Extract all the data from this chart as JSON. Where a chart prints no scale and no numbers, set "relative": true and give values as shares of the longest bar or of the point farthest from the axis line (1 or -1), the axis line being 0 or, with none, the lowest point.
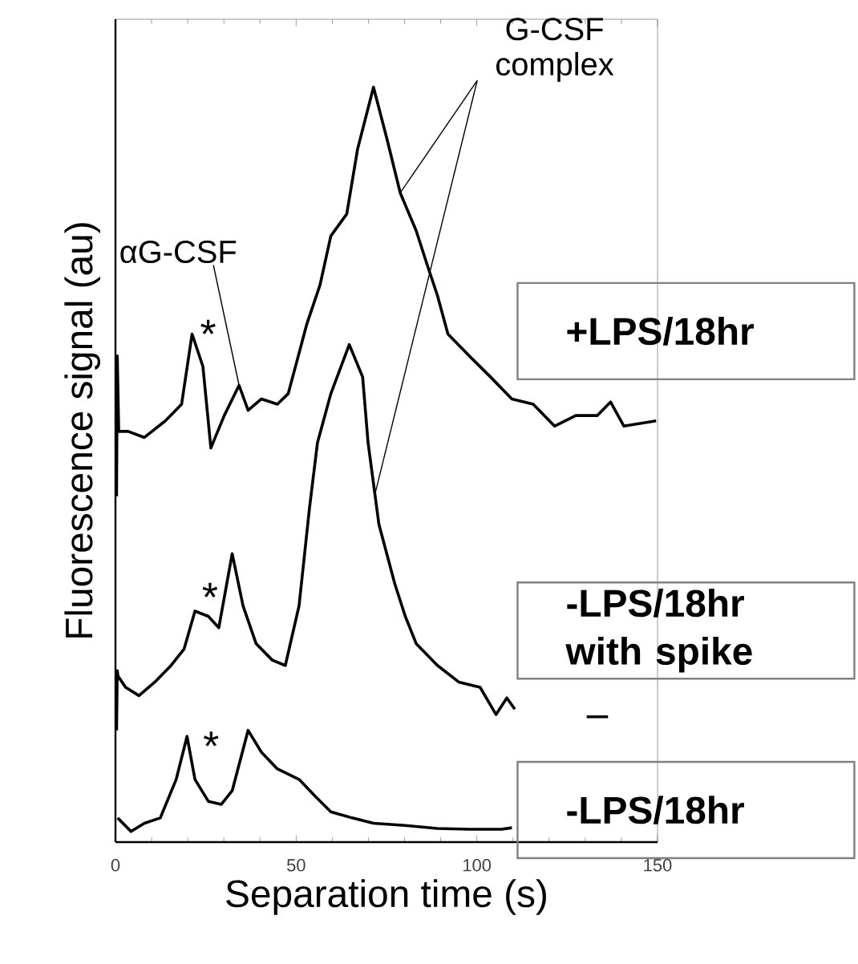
{
  "chart_data": {
    "type": "line",
    "relative": true,
    "xlabel": "Separation time (s)",
    "ylabel": "Fluorescence signal (au)",
    "xlim": [
      0,
      150
    ],
    "xticks": [
      0,
      50,
      100,
      150
    ],
    "grid": false,
    "legend": false,
    "marker": "none",
    "line_style": "solid",
    "series": [
      {
        "name": "+LPS/18hr",
        "color": "#000000",
        "x": [
          0.3,
          0.5,
          0.9,
          3.5,
          8.0,
          13.8,
          18.3,
          21.2,
          24.2,
          26.4,
          30.1,
          34.2,
          36.7,
          40.4,
          44.8,
          47.8,
          53.0,
          56.6,
          59.6,
          64.0,
          67.0,
          71.4,
          75.1,
          78.8,
          83.2,
          86.1,
          89.1,
          92.0,
          97.9,
          103.8,
          109.7,
          115.6,
          121.5,
          127.4,
          133.3,
          137.0,
          140.7,
          149.6
        ],
        "values": [
          0.458,
          0.644,
          0.544,
          0.544,
          0.536,
          0.558,
          0.58,
          0.673,
          0.63,
          0.522,
          0.565,
          0.605,
          0.572,
          0.587,
          0.58,
          0.594,
          0.687,
          0.738,
          0.803,
          0.832,
          0.918,
          1.0,
          0.932,
          0.86,
          0.81,
          0.767,
          0.724,
          0.673,
          0.644,
          0.616,
          0.587,
          0.58,
          0.551,
          0.565,
          0.565,
          0.583,
          0.551,
          0.558
        ]
      },
      {
        "name": "-LPS/18hr with spike",
        "color": "#000000",
        "x": [
          0.3,
          0.5,
          0.7,
          2.8,
          6.5,
          10.9,
          15.4,
          19.0,
          22.0,
          25.7,
          28.6,
          32.3,
          35.3,
          38.9,
          43.4,
          47.0,
          50.8,
          53.7,
          55.9,
          59.6,
          64.7,
          68.4,
          69.9,
          72.9,
          77.3,
          80.2,
          83.2,
          89.1,
          95.0,
          100.9,
          105.3,
          108.3,
          110.5,
          120.0,
          130.4,
          136.3
        ],
        "values": [
          0.148,
          0.227,
          0.22,
          0.205,
          0.194,
          0.212,
          0.234,
          0.256,
          0.306,
          0.299,
          0.284,
          0.382,
          0.313,
          0.263,
          0.241,
          0.234,
          0.313,
          0.443,
          0.529,
          0.594,
          0.659,
          0.616,
          0.529,
          0.421,
          0.342,
          0.299,
          0.263,
          0.234,
          0.212,
          0.205,
          0.169,
          0.191,
          0.176,
          null,
          0.166,
          0.166
        ]
      },
      {
        "name": "-LPS/18hr",
        "color": "#000000",
        "x": [
          0.6,
          4.3,
          8.0,
          12.4,
          16.8,
          19.8,
          22.0,
          25.7,
          29.3,
          32.3,
          36.7,
          40.4,
          44.8,
          50.8,
          55.2,
          59.6,
          65.5,
          71.4,
          80.2,
          89.1,
          97.9,
          106.8,
          109.7
        ],
        "values": [
          0.032,
          0.014,
          0.025,
          0.032,
          0.083,
          0.14,
          0.083,
          0.054,
          0.05,
          0.068,
          0.148,
          0.119,
          0.097,
          0.083,
          0.061,
          0.04,
          0.032,
          0.025,
          0.022,
          0.018,
          0.017,
          0.017,
          0.019
        ]
      }
    ],
    "annotations": [
      {
        "text": "*",
        "x": 21.2,
        "y": 0.673
      },
      {
        "text": "*",
        "x": 25.7,
        "y": 0.299
      },
      {
        "text": "*",
        "x": 19.8,
        "y": 0.14
      },
      {
        "text": "αG-CSF",
        "x": 34.2,
        "y": 0.605
      },
      {
        "text": "G-CSF complex",
        "x": 78.8,
        "y": 0.86
      }
    ]
  }
}
